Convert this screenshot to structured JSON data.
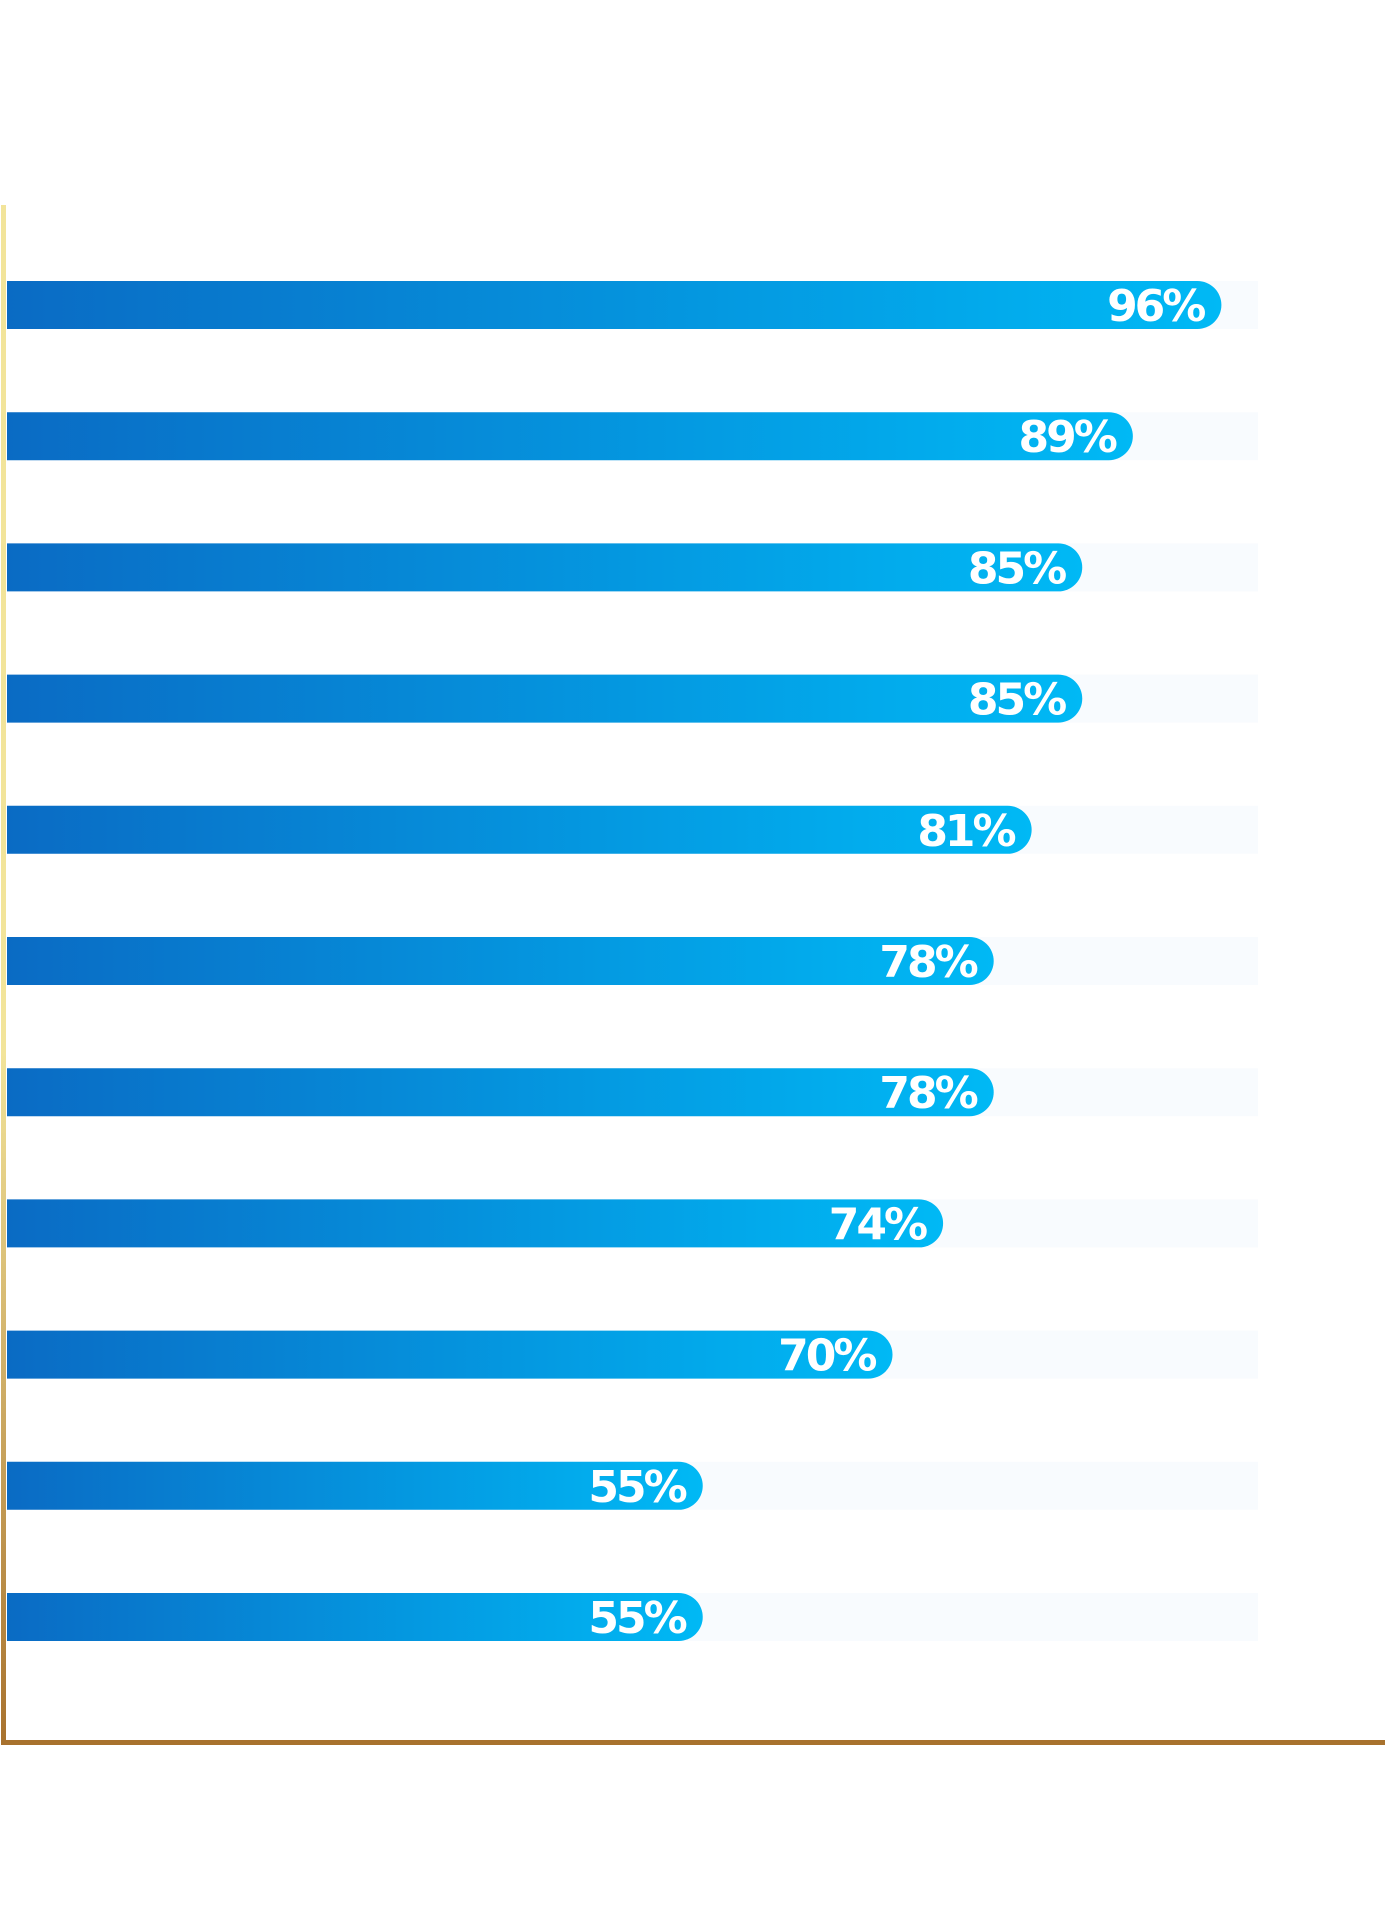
{
  "chart_data": {
    "type": "bar",
    "orientation": "horizontal",
    "categories": [
      "",
      "",
      "",
      "",
      "",
      "",
      "",
      "",
      "",
      "",
      ""
    ],
    "values": [
      96,
      89,
      85,
      85,
      81,
      78,
      78,
      74,
      70,
      55,
      55
    ],
    "value_labels": [
      "96%",
      "89%",
      "85%",
      "85%",
      "81%",
      "78%",
      "78%",
      "74%",
      "70%",
      "55%",
      "55%"
    ],
    "xlim": [
      0,
      100
    ],
    "unit": "%",
    "title": "",
    "xlabel": "",
    "ylabel": "",
    "grid": false,
    "legend": "none"
  },
  "colors": {
    "bar_gradient_start": "#0A6BC4",
    "bar_gradient_end": "#00B9F5",
    "track": "#F8FBFE",
    "axis_gold_light": "#F2E49A",
    "axis_gold_dark": "#A8722E",
    "label": "#FFFFFF",
    "background": "#FFFFFF"
  }
}
